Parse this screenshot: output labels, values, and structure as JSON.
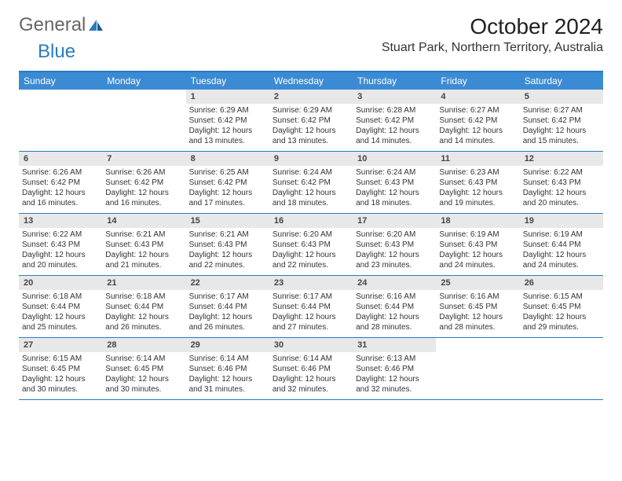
{
  "logo": {
    "general": "General",
    "blue": "Blue"
  },
  "title": "October 2024",
  "location": "Stuart Park, Northern Territory, Australia",
  "colors": {
    "header_bg": "#3b8bd4",
    "header_text": "#ffffff",
    "border": "#2b7bbf",
    "daynum_bg": "#e8e8e8",
    "text": "#333333"
  },
  "typography": {
    "title_fontsize": 28,
    "location_fontsize": 16,
    "dow_fontsize": 12,
    "cell_fontsize": 10
  },
  "days_of_week": [
    "Sunday",
    "Monday",
    "Tuesday",
    "Wednesday",
    "Thursday",
    "Friday",
    "Saturday"
  ],
  "weeks": [
    [
      {
        "day": null
      },
      {
        "day": null
      },
      {
        "day": "1",
        "sunrise": "Sunrise: 6:29 AM",
        "sunset": "Sunset: 6:42 PM",
        "daylight": "Daylight: 12 hours and 13 minutes."
      },
      {
        "day": "2",
        "sunrise": "Sunrise: 6:29 AM",
        "sunset": "Sunset: 6:42 PM",
        "daylight": "Daylight: 12 hours and 13 minutes."
      },
      {
        "day": "3",
        "sunrise": "Sunrise: 6:28 AM",
        "sunset": "Sunset: 6:42 PM",
        "daylight": "Daylight: 12 hours and 14 minutes."
      },
      {
        "day": "4",
        "sunrise": "Sunrise: 6:27 AM",
        "sunset": "Sunset: 6:42 PM",
        "daylight": "Daylight: 12 hours and 14 minutes."
      },
      {
        "day": "5",
        "sunrise": "Sunrise: 6:27 AM",
        "sunset": "Sunset: 6:42 PM",
        "daylight": "Daylight: 12 hours and 15 minutes."
      }
    ],
    [
      {
        "day": "6",
        "sunrise": "Sunrise: 6:26 AM",
        "sunset": "Sunset: 6:42 PM",
        "daylight": "Daylight: 12 hours and 16 minutes."
      },
      {
        "day": "7",
        "sunrise": "Sunrise: 6:26 AM",
        "sunset": "Sunset: 6:42 PM",
        "daylight": "Daylight: 12 hours and 16 minutes."
      },
      {
        "day": "8",
        "sunrise": "Sunrise: 6:25 AM",
        "sunset": "Sunset: 6:42 PM",
        "daylight": "Daylight: 12 hours and 17 minutes."
      },
      {
        "day": "9",
        "sunrise": "Sunrise: 6:24 AM",
        "sunset": "Sunset: 6:42 PM",
        "daylight": "Daylight: 12 hours and 18 minutes."
      },
      {
        "day": "10",
        "sunrise": "Sunrise: 6:24 AM",
        "sunset": "Sunset: 6:43 PM",
        "daylight": "Daylight: 12 hours and 18 minutes."
      },
      {
        "day": "11",
        "sunrise": "Sunrise: 6:23 AM",
        "sunset": "Sunset: 6:43 PM",
        "daylight": "Daylight: 12 hours and 19 minutes."
      },
      {
        "day": "12",
        "sunrise": "Sunrise: 6:22 AM",
        "sunset": "Sunset: 6:43 PM",
        "daylight": "Daylight: 12 hours and 20 minutes."
      }
    ],
    [
      {
        "day": "13",
        "sunrise": "Sunrise: 6:22 AM",
        "sunset": "Sunset: 6:43 PM",
        "daylight": "Daylight: 12 hours and 20 minutes."
      },
      {
        "day": "14",
        "sunrise": "Sunrise: 6:21 AM",
        "sunset": "Sunset: 6:43 PM",
        "daylight": "Daylight: 12 hours and 21 minutes."
      },
      {
        "day": "15",
        "sunrise": "Sunrise: 6:21 AM",
        "sunset": "Sunset: 6:43 PM",
        "daylight": "Daylight: 12 hours and 22 minutes."
      },
      {
        "day": "16",
        "sunrise": "Sunrise: 6:20 AM",
        "sunset": "Sunset: 6:43 PM",
        "daylight": "Daylight: 12 hours and 22 minutes."
      },
      {
        "day": "17",
        "sunrise": "Sunrise: 6:20 AM",
        "sunset": "Sunset: 6:43 PM",
        "daylight": "Daylight: 12 hours and 23 minutes."
      },
      {
        "day": "18",
        "sunrise": "Sunrise: 6:19 AM",
        "sunset": "Sunset: 6:43 PM",
        "daylight": "Daylight: 12 hours and 24 minutes."
      },
      {
        "day": "19",
        "sunrise": "Sunrise: 6:19 AM",
        "sunset": "Sunset: 6:44 PM",
        "daylight": "Daylight: 12 hours and 24 minutes."
      }
    ],
    [
      {
        "day": "20",
        "sunrise": "Sunrise: 6:18 AM",
        "sunset": "Sunset: 6:44 PM",
        "daylight": "Daylight: 12 hours and 25 minutes."
      },
      {
        "day": "21",
        "sunrise": "Sunrise: 6:18 AM",
        "sunset": "Sunset: 6:44 PM",
        "daylight": "Daylight: 12 hours and 26 minutes."
      },
      {
        "day": "22",
        "sunrise": "Sunrise: 6:17 AM",
        "sunset": "Sunset: 6:44 PM",
        "daylight": "Daylight: 12 hours and 26 minutes."
      },
      {
        "day": "23",
        "sunrise": "Sunrise: 6:17 AM",
        "sunset": "Sunset: 6:44 PM",
        "daylight": "Daylight: 12 hours and 27 minutes."
      },
      {
        "day": "24",
        "sunrise": "Sunrise: 6:16 AM",
        "sunset": "Sunset: 6:44 PM",
        "daylight": "Daylight: 12 hours and 28 minutes."
      },
      {
        "day": "25",
        "sunrise": "Sunrise: 6:16 AM",
        "sunset": "Sunset: 6:45 PM",
        "daylight": "Daylight: 12 hours and 28 minutes."
      },
      {
        "day": "26",
        "sunrise": "Sunrise: 6:15 AM",
        "sunset": "Sunset: 6:45 PM",
        "daylight": "Daylight: 12 hours and 29 minutes."
      }
    ],
    [
      {
        "day": "27",
        "sunrise": "Sunrise: 6:15 AM",
        "sunset": "Sunset: 6:45 PM",
        "daylight": "Daylight: 12 hours and 30 minutes."
      },
      {
        "day": "28",
        "sunrise": "Sunrise: 6:14 AM",
        "sunset": "Sunset: 6:45 PM",
        "daylight": "Daylight: 12 hours and 30 minutes."
      },
      {
        "day": "29",
        "sunrise": "Sunrise: 6:14 AM",
        "sunset": "Sunset: 6:46 PM",
        "daylight": "Daylight: 12 hours and 31 minutes."
      },
      {
        "day": "30",
        "sunrise": "Sunrise: 6:14 AM",
        "sunset": "Sunset: 6:46 PM",
        "daylight": "Daylight: 12 hours and 32 minutes."
      },
      {
        "day": "31",
        "sunrise": "Sunrise: 6:13 AM",
        "sunset": "Sunset: 6:46 PM",
        "daylight": "Daylight: 12 hours and 32 minutes."
      },
      {
        "day": null
      },
      {
        "day": null
      }
    ]
  ]
}
